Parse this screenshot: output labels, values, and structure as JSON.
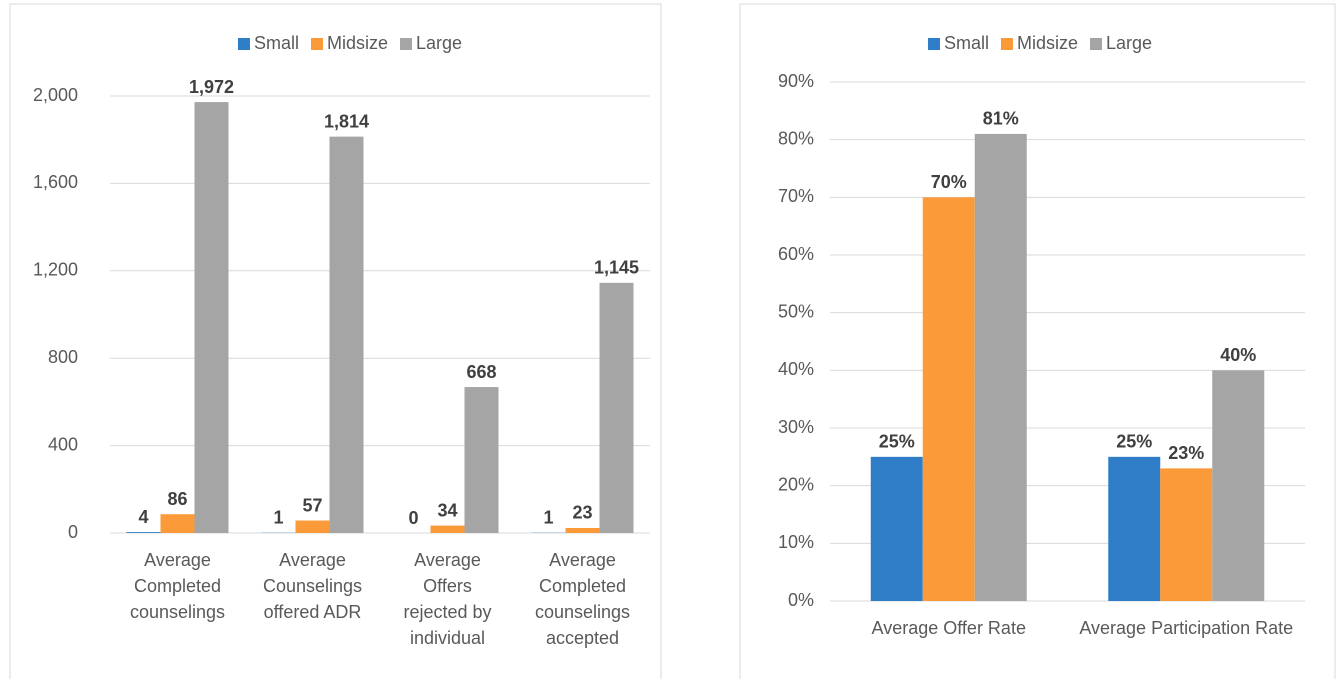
{
  "chart_data": [
    {
      "type": "bar",
      "categories": [
        "Average Completed counselings",
        "Average Counselings offered ADR",
        "Average Offers rejected by individual",
        "Average Completed counselings accepted"
      ],
      "series": [
        {
          "name": "Small",
          "color": "#2e7dc6",
          "values": [
            4,
            1,
            0,
            1
          ]
        },
        {
          "name": "Midsize",
          "color": "#fb9a38",
          "values": [
            86,
            57,
            34,
            23
          ]
        },
        {
          "name": "Large",
          "color": "#a5a5a5",
          "values": [
            1972,
            1814,
            668,
            1145
          ],
          "value_labels": [
            "1,972",
            "1,814",
            "668",
            "1,145"
          ]
        }
      ],
      "ylim": [
        0,
        2000
      ],
      "yticks": [
        0,
        400,
        800,
        {
          "value": 1200,
          "label": "1,200"
        },
        {
          "value": 1600,
          "label": "1,600"
        },
        {
          "value": 2000,
          "label": "2,000"
        }
      ],
      "grid": true,
      "legend": "top"
    },
    {
      "type": "bar",
      "categories": [
        "Average Offer Rate",
        "Average Participation Rate"
      ],
      "series": [
        {
          "name": "Small",
          "color": "#2e7dc6",
          "values": [
            25,
            25
          ],
          "value_labels": [
            "25%",
            "25%"
          ]
        },
        {
          "name": "Midsize",
          "color": "#fb9a38",
          "values": [
            70,
            23
          ],
          "value_labels": [
            "70%",
            "23%"
          ]
        },
        {
          "name": "Large",
          "color": "#a5a5a5",
          "values": [
            81,
            40
          ],
          "value_labels": [
            "81%",
            "40%"
          ]
        }
      ],
      "ylim": [
        0,
        90
      ],
      "yticks": [
        {
          "value": 0,
          "label": "0%"
        },
        {
          "value": 10,
          "label": "10%"
        },
        {
          "value": 20,
          "label": "20%"
        },
        {
          "value": 30,
          "label": "30%"
        },
        {
          "value": 40,
          "label": "40%"
        },
        {
          "value": 50,
          "label": "50%"
        },
        {
          "value": 60,
          "label": "60%"
        },
        {
          "value": 70,
          "label": "70%"
        },
        {
          "value": 80,
          "label": "80%"
        },
        {
          "value": 90,
          "label": "90%"
        }
      ],
      "grid": true,
      "legend": "top"
    }
  ]
}
